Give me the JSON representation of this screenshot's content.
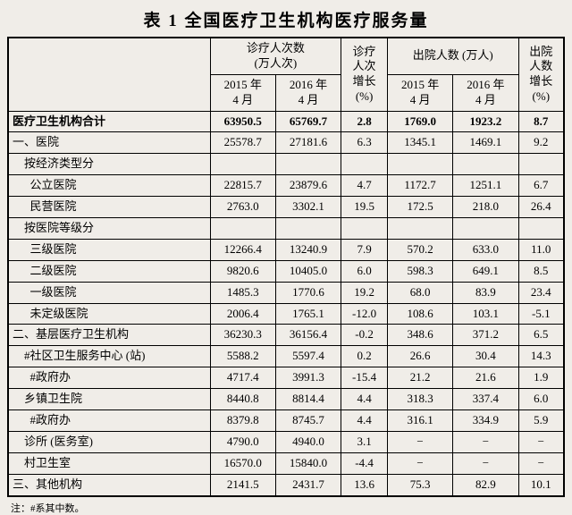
{
  "title": "表 1   全国医疗卫生机构医疗服务量",
  "header": {
    "visits_group": "诊疗人次数\n(万人次)",
    "visits_growth": "诊疗\n人次\n增长\n(%)",
    "discharge_group": "出院人数 (万人)",
    "discharge_growth": "出院\n人数\n增长\n(%)",
    "col_2015": "2015 年\n4 月",
    "col_2016": "2016 年\n4 月"
  },
  "rows": [
    {
      "label": "医疗卫生机构合计",
      "v2015": "63950.5",
      "v2016": "65769.7",
      "vg": "2.8",
      "d2015": "1769.0",
      "d2016": "1923.2",
      "dg": "8.7",
      "bold": true
    },
    {
      "label": "一、医院",
      "v2015": "25578.7",
      "v2016": "27181.6",
      "vg": "6.3",
      "d2015": "1345.1",
      "d2016": "1469.1",
      "dg": "9.2"
    },
    {
      "label": "    按经济类型分",
      "v2015": "",
      "v2016": "",
      "vg": "",
      "d2015": "",
      "d2016": "",
      "dg": ""
    },
    {
      "label": "      公立医院",
      "v2015": "22815.7",
      "v2016": "23879.6",
      "vg": "4.7",
      "d2015": "1172.7",
      "d2016": "1251.1",
      "dg": "6.7"
    },
    {
      "label": "      民营医院",
      "v2015": "2763.0",
      "v2016": "3302.1",
      "vg": "19.5",
      "d2015": "172.5",
      "d2016": "218.0",
      "dg": "26.4"
    },
    {
      "label": "    按医院等级分",
      "v2015": "",
      "v2016": "",
      "vg": "",
      "d2015": "",
      "d2016": "",
      "dg": ""
    },
    {
      "label": "      三级医院",
      "v2015": "12266.4",
      "v2016": "13240.9",
      "vg": "7.9",
      "d2015": "570.2",
      "d2016": "633.0",
      "dg": "11.0"
    },
    {
      "label": "      二级医院",
      "v2015": "9820.6",
      "v2016": "10405.0",
      "vg": "6.0",
      "d2015": "598.3",
      "d2016": "649.1",
      "dg": "8.5"
    },
    {
      "label": "      一级医院",
      "v2015": "1485.3",
      "v2016": "1770.6",
      "vg": "19.2",
      "d2015": "68.0",
      "d2016": "83.9",
      "dg": "23.4"
    },
    {
      "label": "      未定级医院",
      "v2015": "2006.4",
      "v2016": "1765.1",
      "vg": "-12.0",
      "d2015": "108.6",
      "d2016": "103.1",
      "dg": "-5.1"
    },
    {
      "label": "二、基层医疗卫生机构",
      "v2015": "36230.3",
      "v2016": "36156.4",
      "vg": "-0.2",
      "d2015": "348.6",
      "d2016": "371.2",
      "dg": "6.5"
    },
    {
      "label": "    #社区卫生服务中心 (站)",
      "v2015": "5588.2",
      "v2016": "5597.4",
      "vg": "0.2",
      "d2015": "26.6",
      "d2016": "30.4",
      "dg": "14.3"
    },
    {
      "label": "      #政府办",
      "v2015": "4717.4",
      "v2016": "3991.3",
      "vg": "-15.4",
      "d2015": "21.2",
      "d2016": "21.6",
      "dg": "1.9"
    },
    {
      "label": "    乡镇卫生院",
      "v2015": "8440.8",
      "v2016": "8814.4",
      "vg": "4.4",
      "d2015": "318.3",
      "d2016": "337.4",
      "dg": "6.0"
    },
    {
      "label": "      #政府办",
      "v2015": "8379.8",
      "v2016": "8745.7",
      "vg": "4.4",
      "d2015": "316.1",
      "d2016": "334.9",
      "dg": "5.9"
    },
    {
      "label": "    诊所 (医务室)",
      "v2015": "4790.0",
      "v2016": "4940.0",
      "vg": "3.1",
      "d2015": "−",
      "d2016": "−",
      "dg": "−"
    },
    {
      "label": "    村卫生室",
      "v2015": "16570.0",
      "v2016": "15840.0",
      "vg": "-4.4",
      "d2015": "−",
      "d2016": "−",
      "dg": "−"
    },
    {
      "label": "三、其他机构",
      "v2015": "2141.5",
      "v2016": "2431.7",
      "vg": "13.6",
      "d2015": "75.3",
      "d2016": "82.9",
      "dg": "10.1"
    }
  ],
  "footnote": "注：#系其中数。"
}
